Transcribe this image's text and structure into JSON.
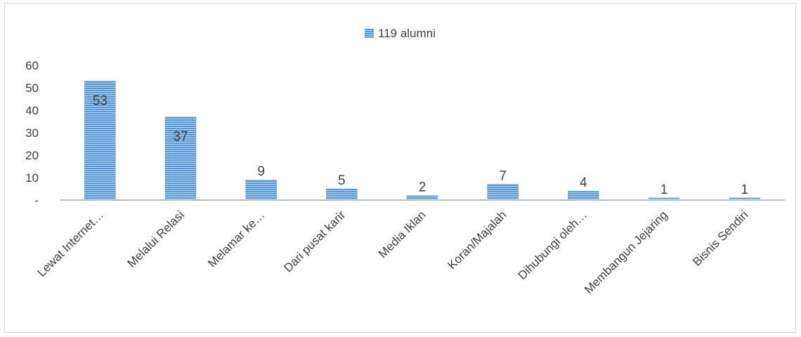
{
  "chart_data": {
    "type": "bar",
    "legend": {
      "label": "119 alumni",
      "position": "top-center"
    },
    "categories": [
      "Lewat Internet…",
      "Melalui Relasi",
      "Melamar ke…",
      "Dari pusat karir",
      "Media Iklan",
      "Koran/Majalah",
      "Dihubungi oleh…",
      "Membangun Jejaring",
      "Bisnis Sendiri"
    ],
    "series": [
      {
        "name": "119 alumni",
        "values": [
          53,
          37,
          9,
          5,
          2,
          7,
          4,
          1,
          1
        ]
      }
    ],
    "data_labels": [
      "53",
      "37",
      "9",
      "5",
      "2",
      "7",
      "4",
      "1",
      "1"
    ],
    "yticks": [
      "-",
      "10",
      "20",
      "30",
      "40",
      "50",
      "60"
    ],
    "ylim": [
      0,
      60
    ],
    "grid": false,
    "colors": {
      "bar": "#5b9bd5",
      "bar_stripe": "#ffffff",
      "axis": "#bfbfbf",
      "text": "#404040"
    }
  }
}
